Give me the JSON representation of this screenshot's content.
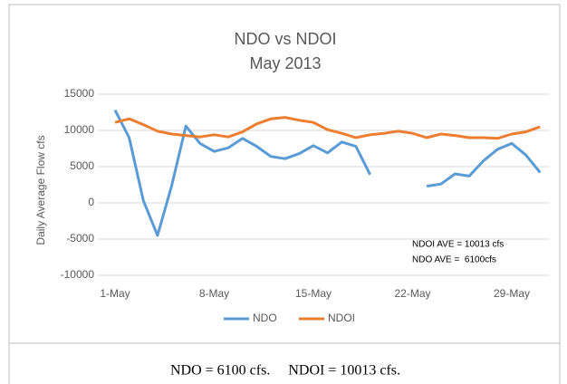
{
  "chart_data": {
    "type": "line",
    "title": "NDO vs NDOI",
    "subtitle": "May 2013",
    "ylabel": "Daily Average Flow cfs",
    "categories": [
      "1-May",
      null,
      null,
      null,
      null,
      null,
      null,
      "8-May",
      null,
      null,
      null,
      null,
      null,
      null,
      "15-May",
      null,
      null,
      null,
      null,
      null,
      null,
      "22-May",
      null,
      null,
      null,
      null,
      null,
      null,
      "29-May",
      null,
      null
    ],
    "series": [
      {
        "name": "NDO",
        "color": "#5b9bd5",
        "values": [
          12800,
          9000,
          300,
          -4500,
          2400,
          10600,
          8200,
          7100,
          7600,
          8900,
          7800,
          6400,
          6100,
          6800,
          7900,
          6900,
          8400,
          7800,
          3900,
          null,
          null,
          null,
          2300,
          2600,
          4000,
          3700,
          5800,
          7400,
          8200,
          6600,
          4200
        ]
      },
      {
        "name": "NDOI",
        "color": "#ed7d31",
        "values": [
          11100,
          11600,
          10800,
          9900,
          9500,
          9300,
          9100,
          9400,
          9100,
          9800,
          10900,
          11600,
          11800,
          11400,
          11100,
          10100,
          9600,
          9000,
          9400,
          9600,
          9900,
          9600,
          9000,
          9500,
          9300,
          9000,
          9000,
          8900,
          9500,
          9800,
          10500
        ]
      }
    ],
    "ylim": [
      -10000,
      15000
    ],
    "yticks": [
      -10000,
      -5000,
      0,
      5000,
      10000,
      15000
    ],
    "grid": true,
    "legend": "bottom",
    "annotations": [
      "NDOI AVE = 10013 cfs",
      "NDO AVE =  6100cfs"
    ],
    "caption": "NDO = 6100 cfs.     NDOI = 10013 cfs."
  }
}
